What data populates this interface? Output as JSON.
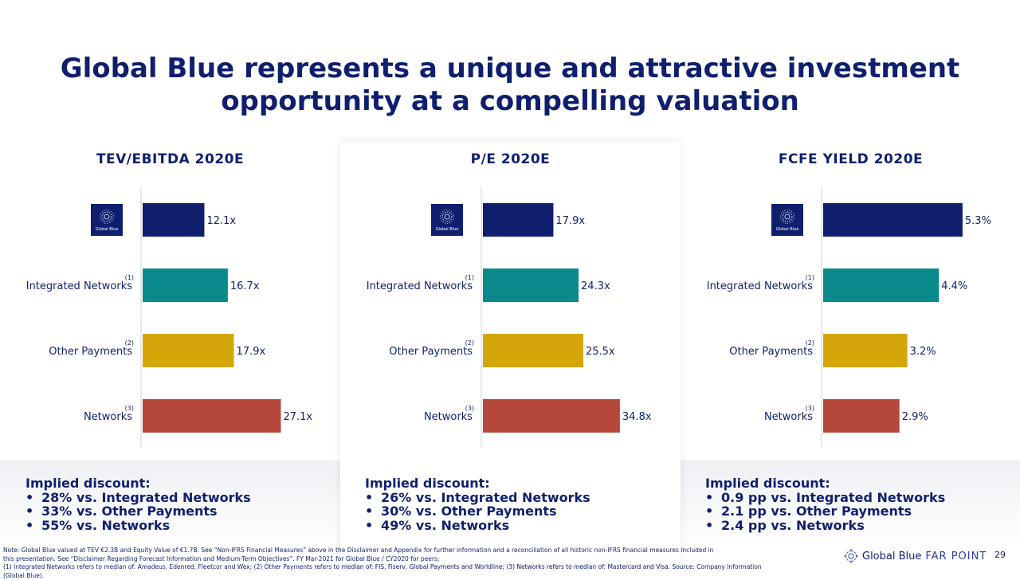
{
  "title": "Global Blue represents a unique and attractive investment opportunity at a compelling valuation",
  "colors": {
    "navy": "#0f1f6e",
    "teal": "#0a8a8a",
    "gold": "#d4a60a",
    "red": "#b5473d"
  },
  "chart_data": [
    {
      "type": "bar",
      "orientation": "horizontal",
      "title": "TEV/EBITDA 2020E",
      "categories": [
        "Global Blue",
        "Integrated Networks",
        "Other Payments",
        "Networks"
      ],
      "footnotes": [
        "",
        "(1)",
        "(2)",
        "(3)"
      ],
      "values": [
        12.1,
        16.7,
        17.9,
        27.1
      ],
      "labels": [
        "12.1x",
        "16.7x",
        "17.9x",
        "27.1x"
      ],
      "xlim": [
        0,
        30
      ]
    },
    {
      "type": "bar",
      "orientation": "horizontal",
      "title": "P/E 2020E",
      "categories": [
        "Global Blue",
        "Integrated Networks",
        "Other Payments",
        "Networks"
      ],
      "footnotes": [
        "",
        "(1)",
        "(2)",
        "(3)"
      ],
      "values": [
        17.9,
        24.3,
        25.5,
        34.8
      ],
      "labels": [
        "17.9x",
        "24.3x",
        "25.5x",
        "34.8x"
      ],
      "xlim": [
        0,
        40
      ]
    },
    {
      "type": "bar",
      "orientation": "horizontal",
      "title": "FCFE YIELD 2020E",
      "categories": [
        "Global Blue",
        "Integrated Networks",
        "Other Payments",
        "Networks"
      ],
      "footnotes": [
        "",
        "(1)",
        "(2)",
        "(3)"
      ],
      "values": [
        5.3,
        4.4,
        3.2,
        2.9
      ],
      "labels": [
        "5.3%",
        "4.4%",
        "3.2%",
        "2.9%"
      ],
      "xlim": [
        0,
        6
      ]
    }
  ],
  "implied": [
    {
      "heading": "Implied discount:",
      "items": [
        "28% vs. Integrated Networks",
        "33% vs. Other Payments",
        "55% vs. Networks"
      ]
    },
    {
      "heading": "Implied discount:",
      "items": [
        "26% vs. Integrated Networks",
        "30% vs. Other Payments",
        "49% vs. Networks"
      ]
    },
    {
      "heading": "Implied discount:",
      "items": [
        "0.9 pp vs. Integrated Networks",
        "2.1 pp vs. Other Payments",
        "2.4 pp vs. Networks"
      ]
    }
  ],
  "logo_text": "Global Blue",
  "notes": [
    "Note: Global Blue valued at TEV €2.3B and Equity Value of €1.7B. See “Non-IFRS Financial Measures” above in the Disclaimer and Appendix for further information and a reconciliation of all historic non-IFRS financial measures included in",
    "this presentation. See “Disclaimer Regarding Forecast Information and Medium-Term Objectives”. FY Mar-2021 for Global Blue / CY2020 for peers;",
    "(1) Integrated Networks refers to median of: Amadeus, Edenred, Fleetcor and Wex; (2) Other Payments refers to median of: FIS, Fiserv, Global Payments and Worldline; (3) Networks refers to median of: Mastercard and Visa. Source: Company Information (Global Blue)."
  ],
  "brand": {
    "name": "Global Blue",
    "suffix": "FAR POINT"
  },
  "page_number": "29"
}
